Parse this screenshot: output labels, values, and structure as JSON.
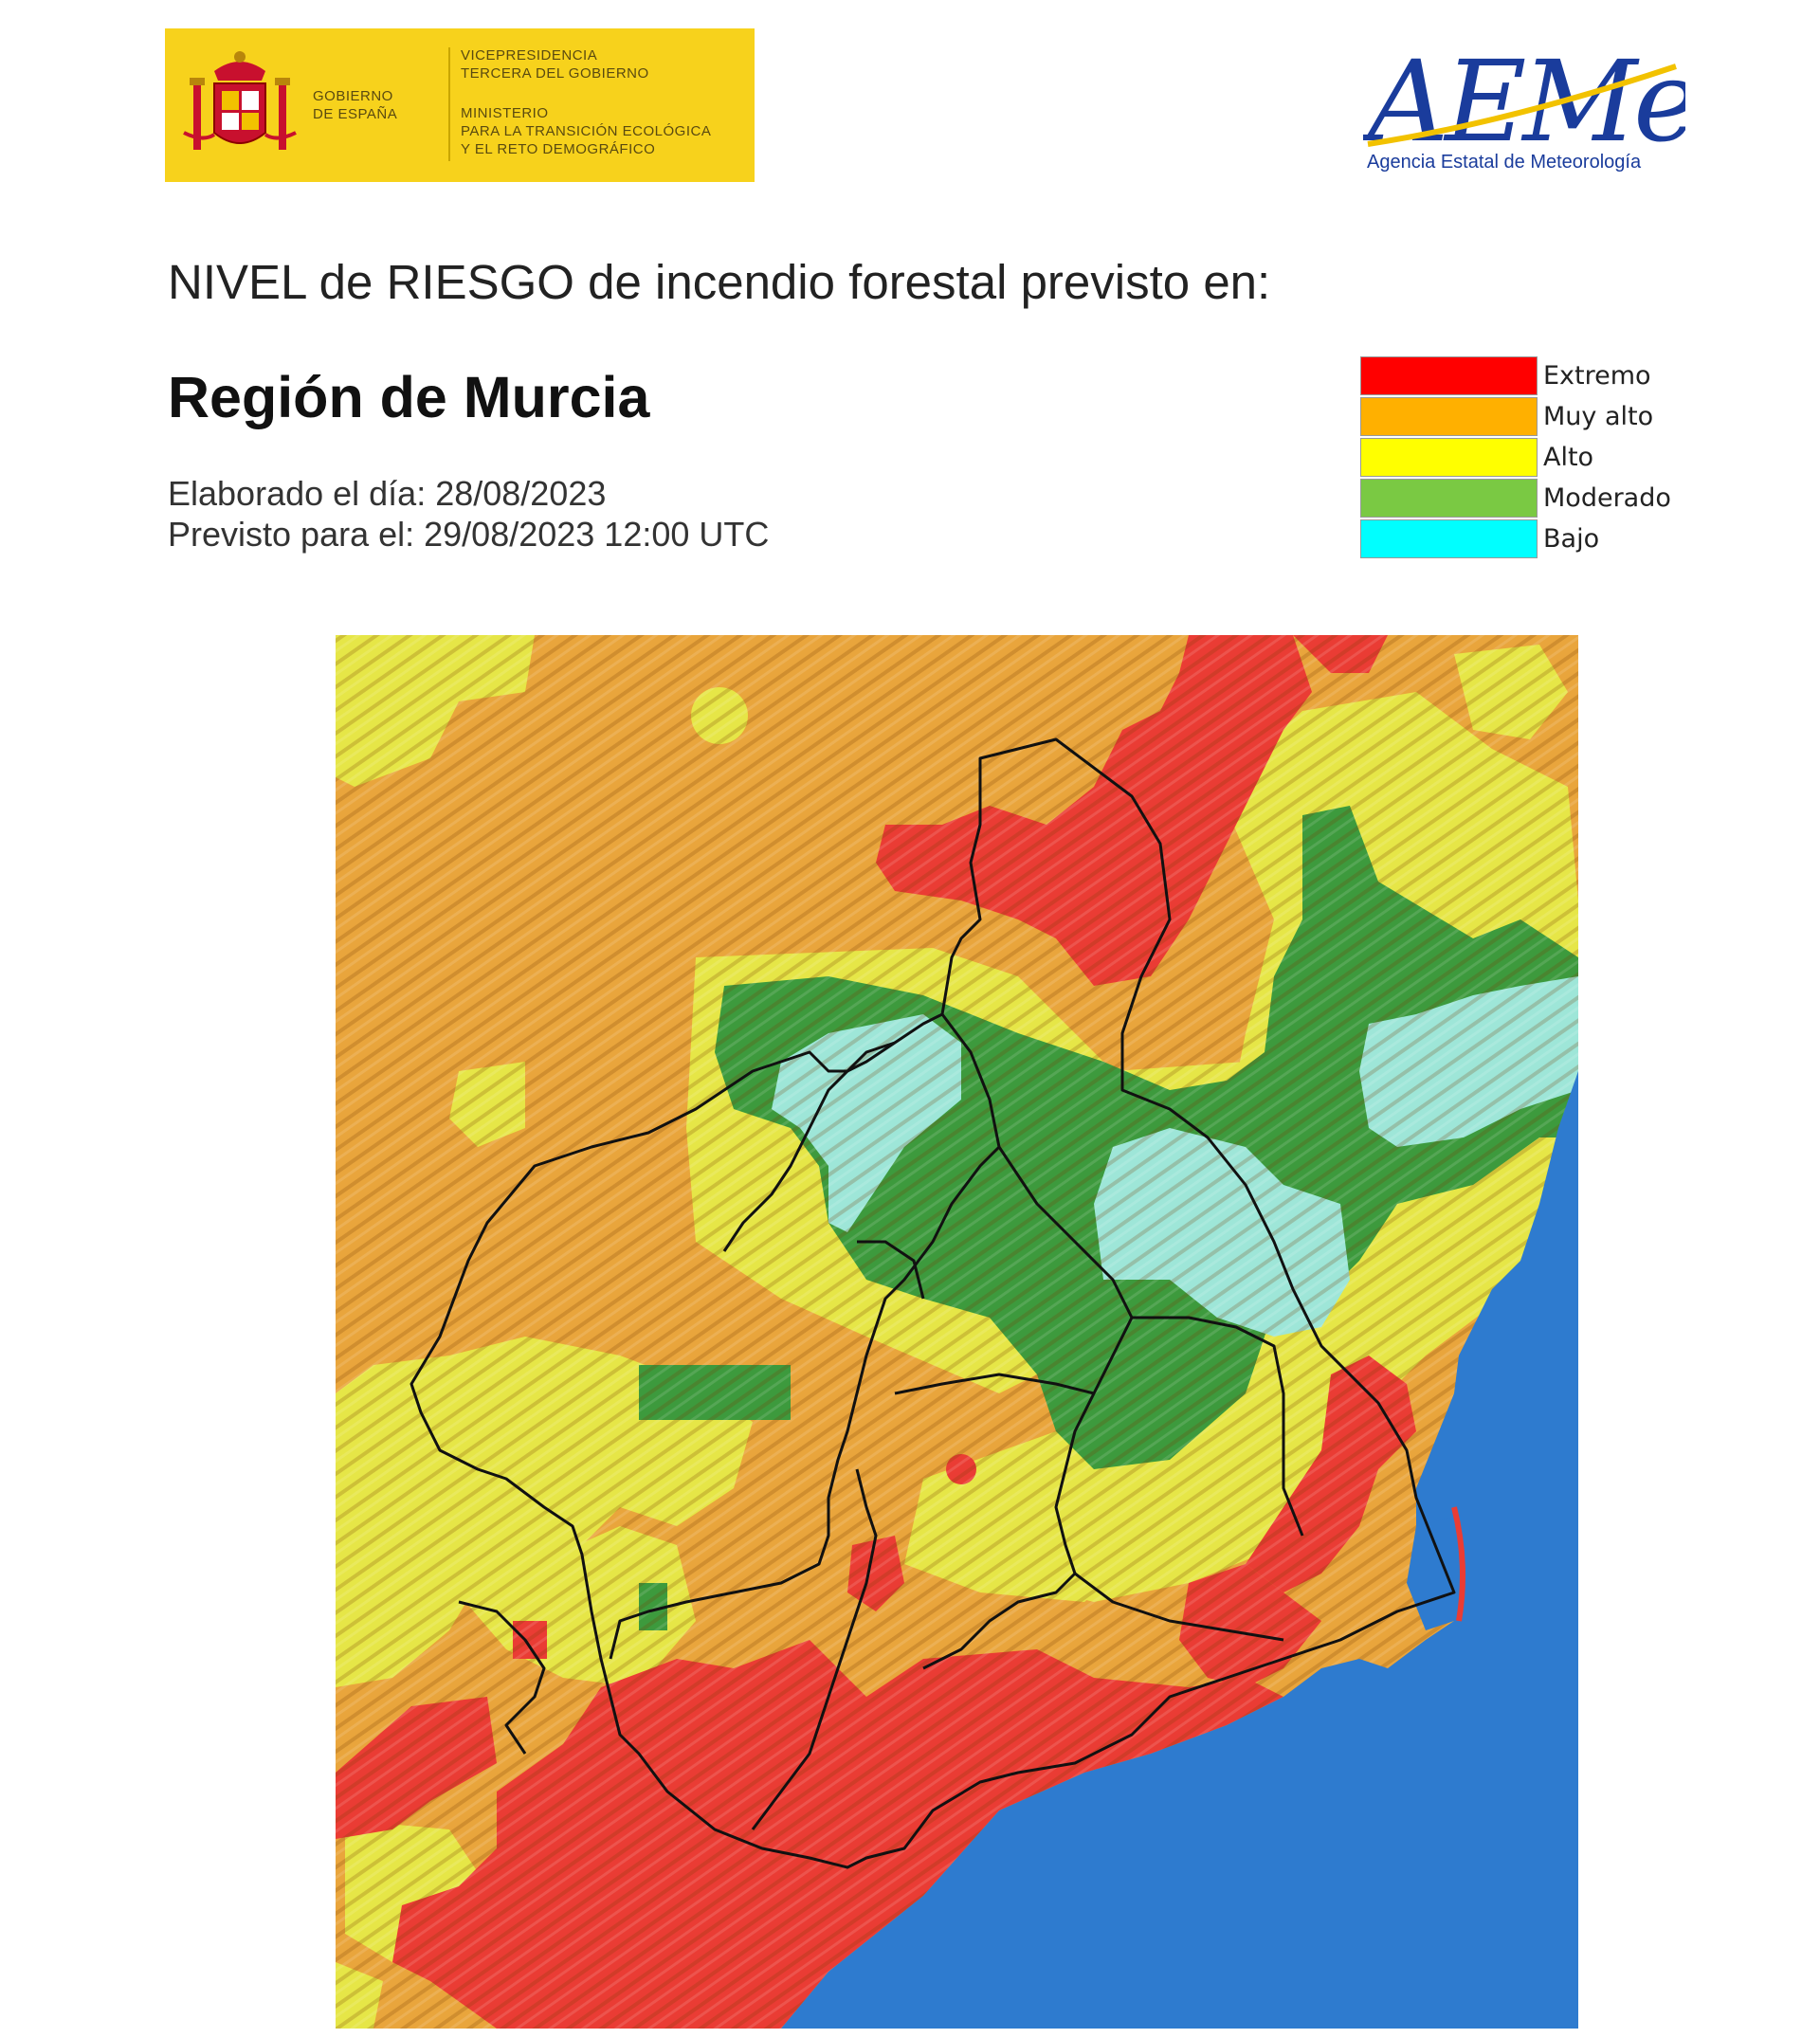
{
  "header": {
    "gov_line1": "GOBIERNO",
    "gov_line2": "DE ESPAÑA",
    "vp_line1": "VICEPRESIDENCIA",
    "vp_line2": "TERCERA DEL GOBIERNO",
    "min_line1": "MINISTERIO",
    "min_line2": "PARA LA TRANSICIÓN ECOLÓGICA",
    "min_line3": "Y EL RETO DEMOGRÁFICO",
    "aemet_logo_text": "AEMet",
    "aemet_subtitle": "Agencia Estatal de Meteorología"
  },
  "title": "NIVEL de RIESGO de incendio forestal previsto en:",
  "region": "Región de Murcia",
  "elaborado": "Elaborado el día: 28/08/2023",
  "previsto": "Previsto para el: 29/08/2023 12:00 UTC",
  "legend": [
    {
      "label": "Extremo",
      "color": "#ff0000"
    },
    {
      "label": "Muy alto",
      "color": "#ffb000"
    },
    {
      "label": "Alto",
      "color": "#ffff00"
    },
    {
      "label": "Moderado",
      "color": "#7ac943"
    },
    {
      "label": "Bajo",
      "color": "#00ffff"
    }
  ],
  "map": {
    "risk_colors": {
      "extremo": "#ea3c34",
      "muy_alto": "#e9a53c",
      "alto": "#e6e647",
      "moderado": "#3d9a3d",
      "bajo": "#9ee6d8",
      "sea": "#2e7bcf"
    }
  }
}
